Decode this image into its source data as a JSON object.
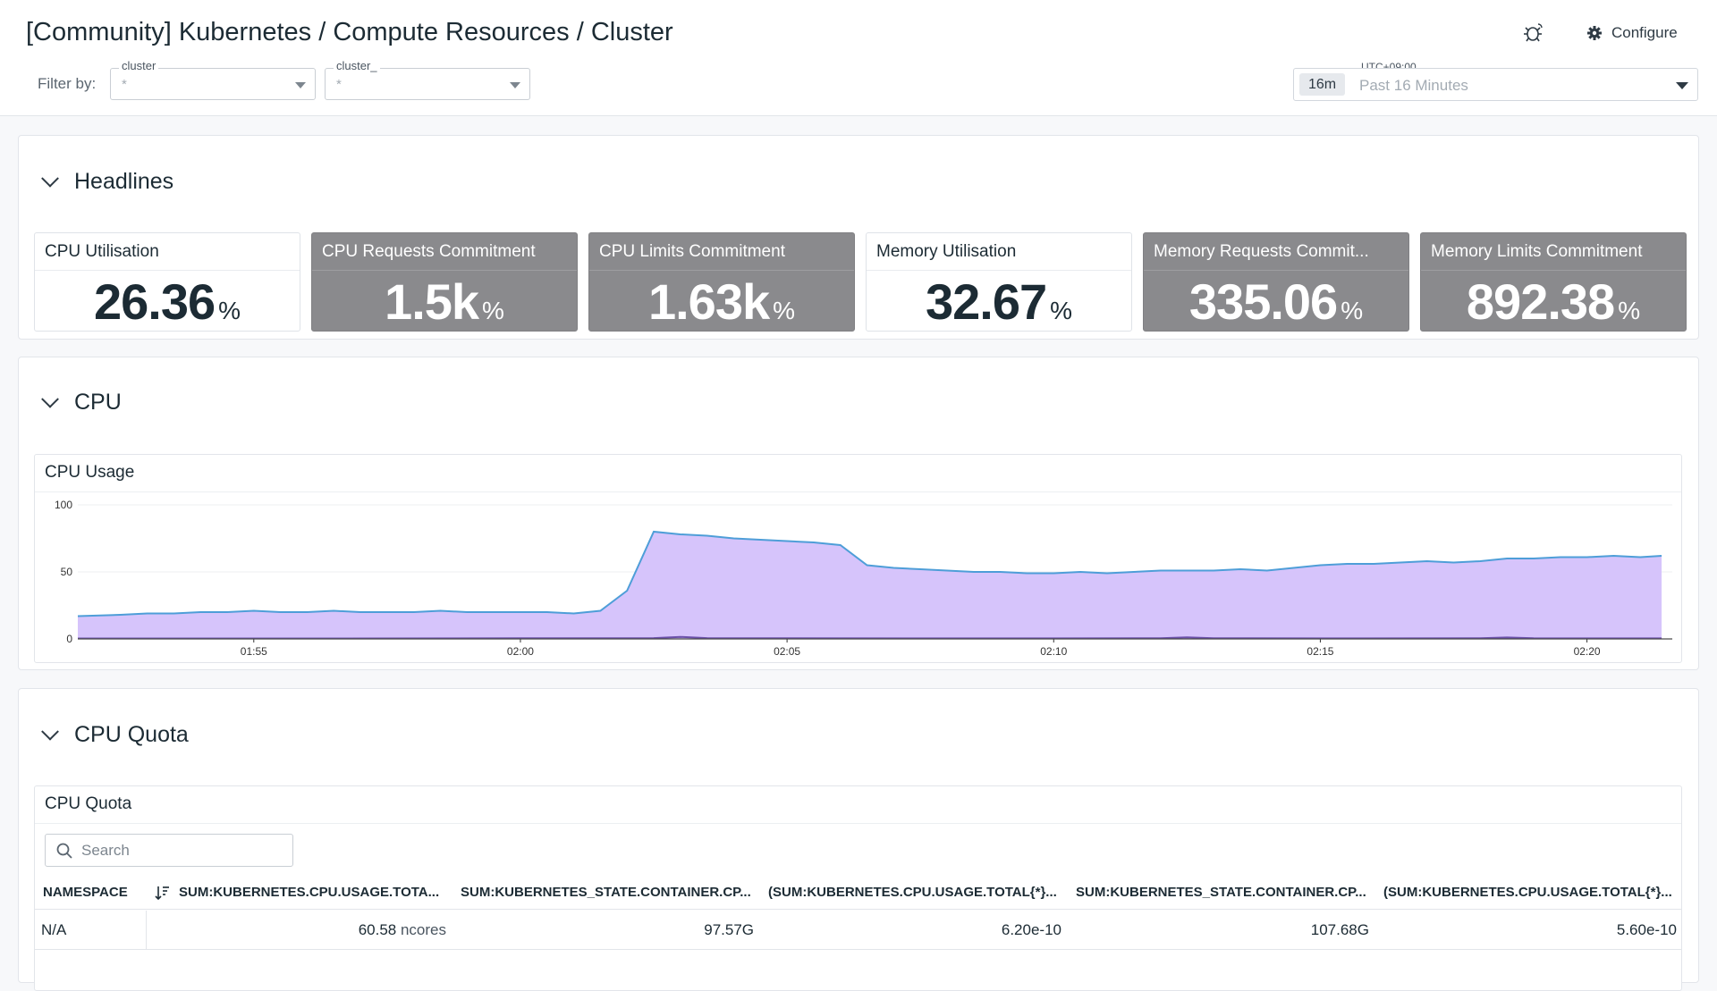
{
  "header": {
    "title": "[Community] Kubernetes / Compute Resources / Cluster",
    "filter_label": "Filter by:",
    "filters": [
      {
        "label": "cluster",
        "value": "*"
      },
      {
        "label": "cluster_",
        "value": "*"
      }
    ],
    "configure_label": "Configure",
    "timezone": "UTC+09:00",
    "time_badge": "16m",
    "time_range": "Past 16 Minutes"
  },
  "headlines": {
    "title": "Headlines",
    "tiles": [
      {
        "name": "CPU Utilisation",
        "value": "26.36",
        "unit": "%",
        "style": "light"
      },
      {
        "name": "CPU Requests Commitment",
        "value": "1.5k",
        "unit": "%",
        "style": "dark"
      },
      {
        "name": "CPU Limits Commitment",
        "value": "1.63k",
        "unit": "%",
        "style": "dark"
      },
      {
        "name": "Memory Utilisation",
        "value": "32.67",
        "unit": "%",
        "style": "light"
      },
      {
        "name": "Memory Requests Commit...",
        "value": "335.06",
        "unit": "%",
        "style": "dark"
      },
      {
        "name": "Memory Limits Commitment",
        "value": "892.38",
        "unit": "%",
        "style": "dark"
      }
    ]
  },
  "cpu": {
    "title": "CPU",
    "widget_title": "CPU Usage"
  },
  "chart_data": {
    "type": "area",
    "title": "CPU Usage",
    "xlabel": "",
    "ylabel": "",
    "ylim": [
      0,
      100
    ],
    "yticks": [
      "0",
      "50",
      "100"
    ],
    "xticks": [
      "01:55",
      "02:00",
      "02:05",
      "02:10",
      "02:15",
      "02:20"
    ],
    "xlim_minutes": [
      -3.3,
      26.6
    ],
    "grid": true,
    "legend": "none",
    "colors": {
      "fill": "#d6c4fb",
      "line": "#4e9ed8",
      "low_line": "#6a4fa8"
    },
    "series": [
      {
        "x_minutes": [
          -3.3,
          -2.5,
          -2,
          -1.5,
          -1,
          -0.5,
          0,
          0.5,
          1,
          1.5,
          2,
          2.5,
          3,
          3.5,
          4,
          4.5,
          5,
          5.5,
          6,
          6.5,
          7,
          7.5,
          8,
          8.5,
          9,
          9.5,
          10,
          10.5,
          11,
          11.5,
          12,
          12.5,
          13,
          13.5,
          14,
          14.5,
          15,
          15.5,
          16,
          16.5,
          17,
          17.5,
          18,
          18.5,
          19,
          19.5,
          20,
          20.5,
          21,
          21.5,
          22,
          22.5,
          23,
          23.5,
          24,
          24.5,
          25,
          25.5,
          26,
          26.4
        ],
        "values": [
          17,
          18,
          19,
          19,
          20,
          20,
          21,
          20,
          20,
          21,
          20,
          20,
          20,
          21,
          20,
          20,
          20,
          20,
          19,
          21,
          36,
          80,
          78,
          77,
          75,
          74,
          73,
          72,
          70,
          55,
          53,
          52,
          51,
          50,
          50,
          49,
          49,
          50,
          49,
          50,
          51,
          51,
          51,
          52,
          51,
          53,
          55,
          56,
          56,
          57,
          58,
          57,
          58,
          60,
          60,
          61,
          61,
          62,
          61,
          62
        ]
      },
      {
        "x_minutes": [
          -3.3,
          0,
          5,
          7.5,
          8,
          8.5,
          10,
          15,
          17,
          17.5,
          18,
          20,
          23,
          23.5,
          24,
          26.4
        ],
        "values": [
          0.3,
          0.3,
          0.5,
          0.6,
          1.5,
          0.6,
          0.5,
          0.4,
          0.5,
          1.2,
          0.5,
          0.4,
          0.5,
          1.1,
          0.5,
          0.4
        ]
      }
    ]
  },
  "quota": {
    "title": "CPU Quota",
    "widget_title": "CPU Quota",
    "search_placeholder": "Search",
    "columns": [
      "NAMESPACE",
      "SUM:KUBERNETES.CPU.USAGE.TOTA...",
      "SUM:KUBERNETES_STATE.CONTAINER.CP...",
      "(SUM:KUBERNETES.CPU.USAGE.TOTAL{*}...",
      "SUM:KUBERNETES_STATE.CONTAINER.CP...",
      "(SUM:KUBERNETES.CPU.USAGE.TOTAL{*}..."
    ],
    "rows": [
      {
        "namespace": "N/A",
        "c1": "60.58",
        "c1_unit": "ncores",
        "c2": "97.57G",
        "c3": "6.20e-10",
        "c4": "107.68G",
        "c5": "5.60e-10"
      }
    ]
  }
}
